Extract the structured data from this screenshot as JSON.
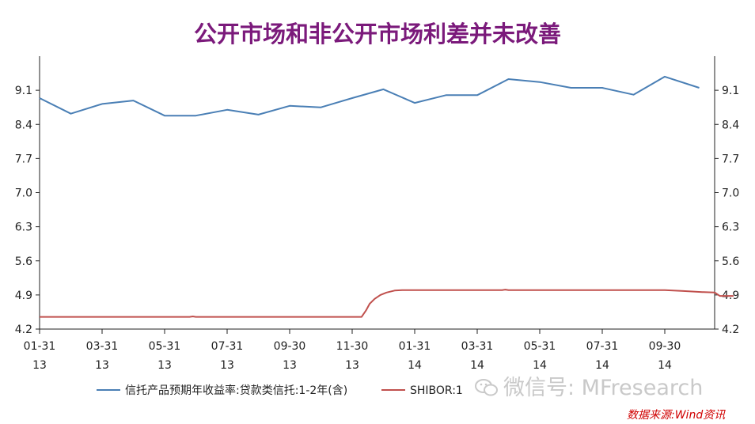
{
  "chart_data": {
    "type": "line",
    "title": "公开市场和非公开市场利差并未改善",
    "y_ticks": [
      "9.1",
      "8.4",
      "7.7",
      "7.0",
      "6.3",
      "5.6",
      "4.9",
      "4.2"
    ],
    "ylim": [
      4.2,
      9.8
    ],
    "x_ticks": [
      {
        "month": "01-31",
        "year": "13"
      },
      {
        "month": "03-31",
        "year": "13"
      },
      {
        "month": "05-31",
        "year": "13"
      },
      {
        "month": "07-31",
        "year": "13"
      },
      {
        "month": "09-30",
        "year": "13"
      },
      {
        "month": "11-30",
        "year": "13"
      },
      {
        "month": "01-31",
        "year": "14"
      },
      {
        "month": "03-31",
        "year": "14"
      },
      {
        "month": "05-31",
        "year": "14"
      },
      {
        "month": "07-31",
        "year": "14"
      },
      {
        "month": "09-30",
        "year": "14"
      }
    ],
    "series": [
      {
        "name": "信托产品预期年收益率:贷款类信托:1-2年(含)",
        "color": "#4a7fb5",
        "points": [
          [
            0,
            8.94
          ],
          [
            0.5,
            8.62
          ],
          [
            1,
            8.82
          ],
          [
            1.5,
            8.89
          ],
          [
            2,
            8.58
          ],
          [
            2.5,
            8.58
          ],
          [
            3,
            8.7
          ],
          [
            3.5,
            8.6
          ],
          [
            4,
            8.78
          ],
          [
            4.5,
            8.75
          ],
          [
            5,
            8.94
          ],
          [
            5.5,
            9.12
          ],
          [
            6,
            8.84
          ],
          [
            6.5,
            9.0
          ],
          [
            7,
            9.0
          ],
          [
            7.5,
            9.33
          ],
          [
            8,
            9.27
          ],
          [
            8.5,
            9.15
          ],
          [
            9,
            9.15
          ],
          [
            9.5,
            9.01
          ],
          [
            10,
            9.38
          ],
          [
            10.55,
            9.15
          ]
        ]
      },
      {
        "name": "SHIBOR:1年",
        "color": "#c0504d",
        "points": [
          [
            0,
            4.45
          ],
          [
            0.5,
            4.45
          ],
          [
            1,
            4.45
          ],
          [
            1.5,
            4.45
          ],
          [
            2,
            4.45
          ],
          [
            2.4,
            4.45
          ],
          [
            2.45,
            4.46
          ],
          [
            2.5,
            4.45
          ],
          [
            3,
            4.45
          ],
          [
            3.5,
            4.45
          ],
          [
            4,
            4.45
          ],
          [
            4.5,
            4.45
          ],
          [
            5,
            4.45
          ],
          [
            5.15,
            4.45
          ],
          [
            5.22,
            4.58
          ],
          [
            5.28,
            4.72
          ],
          [
            5.36,
            4.82
          ],
          [
            5.45,
            4.9
          ],
          [
            5.55,
            4.95
          ],
          [
            5.68,
            4.99
          ],
          [
            5.8,
            5.0
          ],
          [
            6.2,
            5.0
          ],
          [
            7,
            5.0
          ],
          [
            7.4,
            5.0
          ],
          [
            7.45,
            5.01
          ],
          [
            7.5,
            5.0
          ],
          [
            8,
            5.0
          ],
          [
            9,
            5.0
          ],
          [
            10,
            5.0
          ],
          [
            10.3,
            4.98
          ],
          [
            10.6,
            4.96
          ],
          [
            10.8,
            4.95
          ],
          [
            10.88,
            4.88
          ],
          [
            11.1,
            4.88
          ]
        ]
      }
    ],
    "legend_position": "bottom",
    "grid": false
  },
  "legend": {
    "series1": "信托产品预期年收益率:贷款类信托:1-2年(含)",
    "series2": "SHIBOR:1"
  },
  "watermark": "微信号: MFresearch",
  "source_note": "数据来源:Wind资讯"
}
